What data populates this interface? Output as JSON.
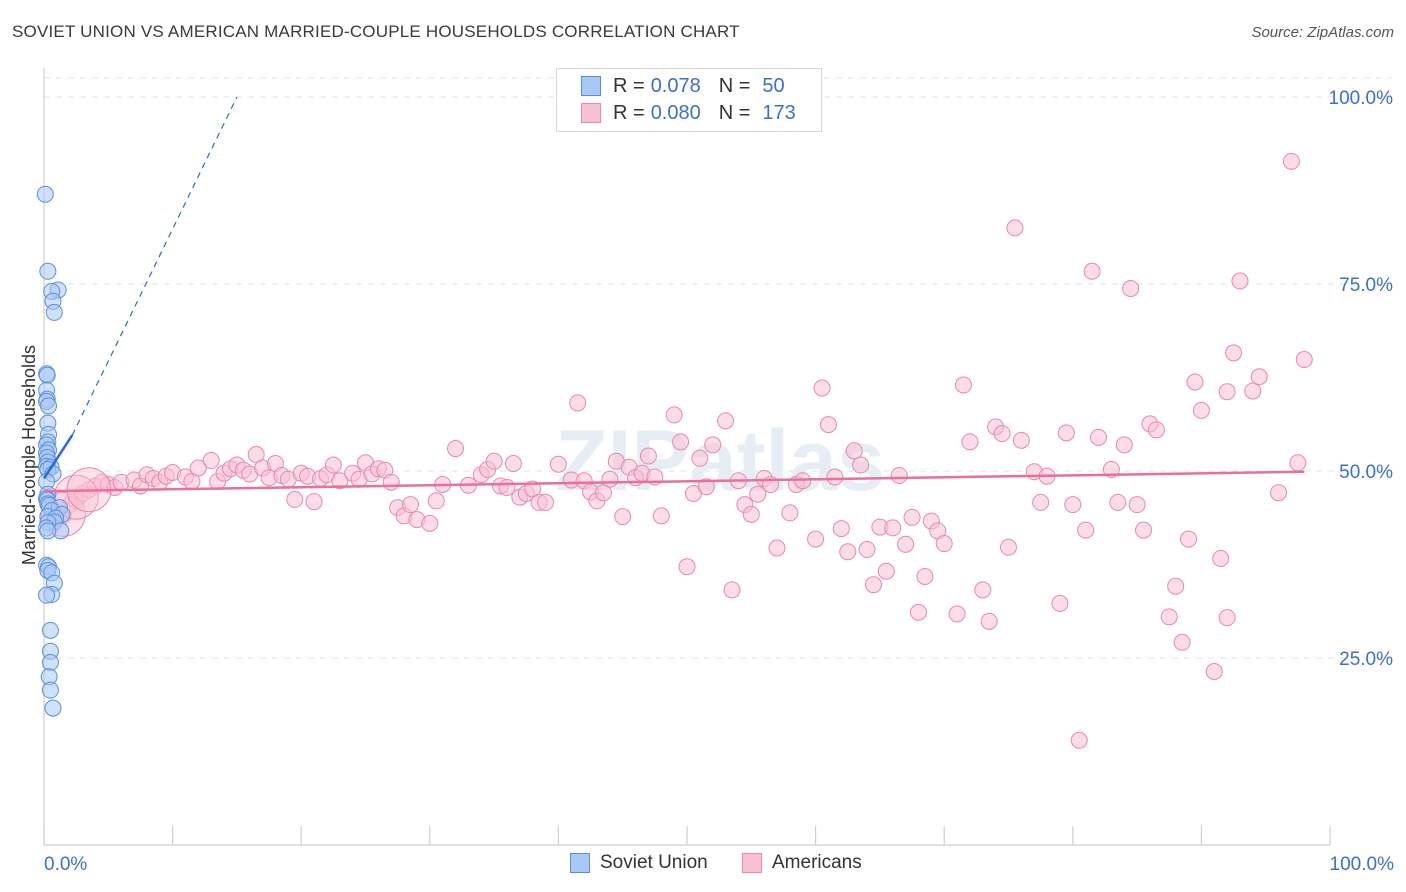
{
  "header": {
    "title": "SOVIET UNION VS AMERICAN MARRIED-COUPLE HOUSEHOLDS CORRELATION CHART",
    "source": "Source: ZipAtlas.com"
  },
  "legend": {
    "r_label": "R =",
    "n_label": "N =",
    "series": [
      {
        "name": "Soviet Union",
        "r": "0.078",
        "n": "50"
      },
      {
        "name": "Americans",
        "r": "0.080",
        "n": "173"
      }
    ]
  },
  "colors": {
    "soviet_fill": "#a9c8f5",
    "soviet_stroke": "#5b8fdc",
    "soviet_line": "#2a6ad4",
    "american_fill": "#f9c0d2",
    "american_stroke": "#e88aa8",
    "american_line": "#e8709a",
    "axis_label": "#3b6fd0"
  },
  "watermark": "ZIPatlas",
  "chart_data": {
    "type": "scatter",
    "title": "SOVIET UNION VS AMERICAN MARRIED-COUPLE HOUSEHOLDS CORRELATION CHART",
    "xlabel": "",
    "ylabel": "Married-couple Households",
    "xlim": [
      0,
      100
    ],
    "ylim": [
      0,
      100
    ],
    "x_tick_labels": [
      "0.0%",
      "100.0%"
    ],
    "y_ticks": [
      25,
      50,
      75,
      100
    ],
    "y_tick_labels": [
      "25.0%",
      "50.0%",
      "75.0%",
      "100.0%"
    ],
    "grid": true,
    "legend_position": "bottom",
    "series": [
      {
        "name": "Soviet Union",
        "trend": {
          "x0": 0,
          "y0": 49.0,
          "x1": 2.2,
          "y1": 54.8,
          "dashed_x1": 15,
          "dashed_y1": 100
        },
        "points": [
          [
            0.1,
            87
          ],
          [
            0.3,
            76.7
          ],
          [
            1.1,
            74.2
          ],
          [
            0.6,
            74
          ],
          [
            0.7,
            72.7
          ],
          [
            0.8,
            71.2
          ],
          [
            0.2,
            63
          ],
          [
            0.25,
            62.8
          ],
          [
            0.2,
            60.8
          ],
          [
            0.25,
            59.6
          ],
          [
            0.2,
            59.3
          ],
          [
            0.35,
            58.7
          ],
          [
            0.3,
            56.4
          ],
          [
            0.35,
            54.9
          ],
          [
            0.3,
            53.9
          ],
          [
            0.2,
            53.5
          ],
          [
            0.35,
            52.8
          ],
          [
            0.2,
            52.4
          ],
          [
            0.25,
            51.8
          ],
          [
            0.3,
            51.2
          ],
          [
            0.2,
            50.6
          ],
          [
            0.55,
            50.5
          ],
          [
            0.3,
            50.2
          ],
          [
            0.7,
            49.6
          ],
          [
            0.2,
            48.6
          ],
          [
            0.3,
            46.9
          ],
          [
            0.2,
            46.3
          ],
          [
            0.25,
            46.1
          ],
          [
            0.3,
            45.6
          ],
          [
            0.4,
            45.4
          ],
          [
            1.2,
            45.1
          ],
          [
            0.6,
            44.7
          ],
          [
            1.4,
            44.2
          ],
          [
            0.3,
            43.9
          ],
          [
            0.9,
            43.7
          ],
          [
            0.8,
            43.2
          ],
          [
            0.3,
            43.1
          ],
          [
            0.2,
            42.4
          ],
          [
            1.3,
            42.0
          ],
          [
            0.3,
            42.0
          ],
          [
            0.2,
            37.4
          ],
          [
            0.35,
            37.2
          ],
          [
            0.3,
            36.7
          ],
          [
            0.6,
            36.4
          ],
          [
            0.8,
            35
          ],
          [
            0.6,
            33.5
          ],
          [
            0.2,
            33.4
          ],
          [
            0.5,
            28.7
          ],
          [
            0.5,
            25.9
          ],
          [
            0.5,
            24.4
          ]
        ],
        "extra_points": [
          [
            0.4,
            22.5
          ],
          [
            0.5,
            20.7
          ],
          [
            0.7,
            18.3
          ]
        ]
      },
      {
        "name": "Americans",
        "trend": {
          "x0": 0,
          "y0": 47.3,
          "x1": 98,
          "y1": 49.9
        },
        "points": [
          [
            1,
            44.5
          ],
          [
            1.5,
            44
          ],
          [
            2,
            45.5
          ],
          [
            2.5,
            46
          ],
          [
            3,
            47
          ],
          [
            3.5,
            47.5
          ],
          [
            4,
            48
          ],
          [
            4.5,
            48.5
          ],
          [
            5,
            48.2
          ],
          [
            5.5,
            47.8
          ],
          [
            6,
            48.5
          ],
          [
            7,
            48.8
          ],
          [
            7.5,
            48
          ],
          [
            8,
            49.5
          ],
          [
            8.5,
            49
          ],
          [
            9,
            48.5
          ],
          [
            9.5,
            49.3
          ],
          [
            10,
            49.8
          ],
          [
            11,
            49.2
          ],
          [
            11.5,
            48.6
          ],
          [
            12,
            50.4
          ],
          [
            13,
            51.4
          ],
          [
            13.5,
            48.6
          ],
          [
            14,
            49.7
          ],
          [
            14.5,
            50.3
          ],
          [
            15,
            50.8
          ],
          [
            15.5,
            50.1
          ],
          [
            16,
            49.6
          ],
          [
            16.5,
            52.2
          ],
          [
            17,
            50.4
          ],
          [
            17.5,
            49.1
          ],
          [
            18,
            51
          ],
          [
            18.5,
            49.4
          ],
          [
            19,
            48.9
          ],
          [
            19.5,
            46.2
          ],
          [
            20,
            49.7
          ],
          [
            20.5,
            49.3
          ],
          [
            21,
            45.9
          ],
          [
            21.5,
            49
          ],
          [
            22,
            49.5
          ],
          [
            22.5,
            50.8
          ],
          [
            23,
            48.7
          ],
          [
            24,
            49.7
          ],
          [
            24.5,
            48.9
          ],
          [
            25,
            51.1
          ],
          [
            25.5,
            49.6
          ],
          [
            26,
            50.3
          ],
          [
            26.5,
            50.1
          ],
          [
            27,
            48.5
          ],
          [
            27.5,
            45.1
          ],
          [
            28,
            44
          ],
          [
            28.5,
            45.5
          ],
          [
            29,
            43.5
          ],
          [
            30,
            43
          ],
          [
            30.5,
            46
          ],
          [
            31,
            48.2
          ],
          [
            32,
            53
          ],
          [
            33,
            48.1
          ],
          [
            34,
            49.5
          ],
          [
            34.5,
            50.2
          ],
          [
            35,
            51.3
          ],
          [
            35.5,
            48
          ],
          [
            36,
            47.8
          ],
          [
            36.5,
            51
          ],
          [
            37,
            46.5
          ],
          [
            37.5,
            47
          ],
          [
            38,
            47.6
          ],
          [
            38.5,
            45.8
          ],
          [
            39,
            45.8
          ],
          [
            40,
            50.9
          ],
          [
            41,
            48.8
          ],
          [
            41.5,
            59.1
          ],
          [
            42,
            48.7
          ],
          [
            42.5,
            47.2
          ],
          [
            43,
            46
          ],
          [
            43.5,
            47.1
          ],
          [
            44,
            48.9
          ],
          [
            44.5,
            51.3
          ],
          [
            45,
            43.9
          ],
          [
            45.5,
            50.5
          ],
          [
            46,
            49.1
          ],
          [
            46.5,
            49.7
          ],
          [
            47,
            52
          ],
          [
            47.5,
            49.2
          ],
          [
            48,
            44
          ],
          [
            49,
            57.5
          ],
          [
            49.5,
            53.9
          ],
          [
            50,
            37.2
          ],
          [
            50.5,
            47
          ],
          [
            51,
            51.7
          ],
          [
            51.5,
            47.9
          ],
          [
            52,
            53.5
          ],
          [
            53,
            56.7
          ],
          [
            53.5,
            34.1
          ],
          [
            54,
            48.7
          ],
          [
            54.5,
            45.5
          ],
          [
            55,
            44.2
          ],
          [
            55.5,
            46.9
          ],
          [
            56,
            49
          ],
          [
            56.5,
            48.2
          ],
          [
            57,
            39.7
          ],
          [
            58,
            44.4
          ],
          [
            58.5,
            48.2
          ],
          [
            59,
            48.7
          ],
          [
            60,
            40.9
          ],
          [
            60.5,
            61.1
          ],
          [
            61,
            56.2
          ],
          [
            61.5,
            49.2
          ],
          [
            62,
            42.3
          ],
          [
            62.5,
            39.2
          ],
          [
            63,
            52.7
          ],
          [
            63.5,
            50.8
          ],
          [
            64,
            39.5
          ],
          [
            64.5,
            34.8
          ],
          [
            65,
            42.5
          ],
          [
            65.5,
            36.6
          ],
          [
            66,
            42.4
          ],
          [
            66.5,
            49.4
          ],
          [
            67,
            40.2
          ],
          [
            67.5,
            43.8
          ],
          [
            68,
            31.1
          ],
          [
            68.5,
            35.9
          ],
          [
            69,
            43.3
          ],
          [
            69.5,
            42
          ],
          [
            70,
            40.3
          ],
          [
            71,
            30.9
          ],
          [
            71.5,
            61.5
          ],
          [
            72,
            53.9
          ],
          [
            73,
            34.1
          ],
          [
            73.5,
            29.9
          ],
          [
            74,
            55.9
          ],
          [
            74.5,
            55
          ],
          [
            75,
            39.8
          ],
          [
            75.5,
            82.5
          ],
          [
            76,
            54.1
          ],
          [
            77,
            49.9
          ],
          [
            77.5,
            45.8
          ],
          [
            78,
            49.3
          ],
          [
            79,
            32.3
          ],
          [
            79.5,
            55.1
          ],
          [
            80,
            45.5
          ],
          [
            80.5,
            14
          ],
          [
            81,
            42.1
          ],
          [
            81.5,
            76.7
          ],
          [
            82,
            54.5
          ],
          [
            83,
            50.2
          ],
          [
            83.5,
            45.8
          ],
          [
            84,
            53.5
          ],
          [
            84.5,
            74.4
          ],
          [
            85,
            45.5
          ],
          [
            85.5,
            42.1
          ],
          [
            86,
            56.3
          ],
          [
            86.5,
            55.5
          ],
          [
            87.5,
            30.5
          ],
          [
            88,
            34.6
          ],
          [
            88.5,
            27.1
          ],
          [
            89,
            40.9
          ],
          [
            89.5,
            61.9
          ],
          [
            90,
            58.1
          ],
          [
            91,
            23.2
          ],
          [
            91.5,
            38.3
          ],
          [
            92,
            60.6
          ],
          [
            92.5,
            65.8
          ],
          [
            93,
            75.4
          ],
          [
            94,
            60.7
          ],
          [
            94.5,
            62.6
          ],
          [
            96,
            47.1
          ],
          [
            97,
            91.4
          ],
          [
            97.5,
            51.1
          ],
          [
            98,
            64.9
          ],
          [
            92,
            30.4
          ]
        ],
        "large_points": [
          [
            1.5,
            44.2
          ],
          [
            2.5,
            46.5
          ],
          [
            3.5,
            47.5
          ]
        ]
      }
    ]
  }
}
